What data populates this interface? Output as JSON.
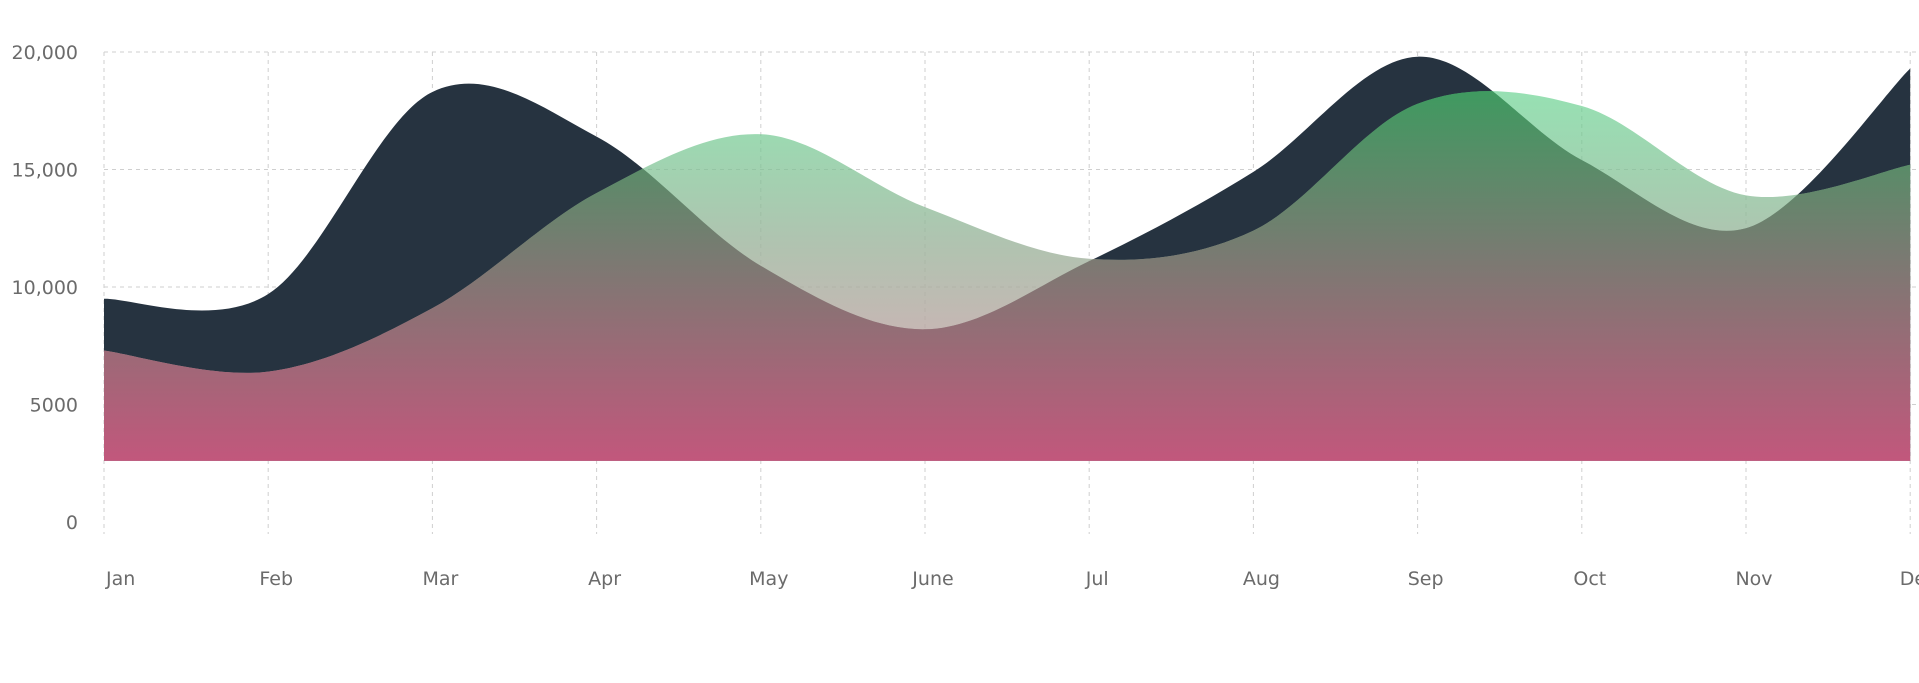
{
  "chart_data": {
    "type": "area",
    "categories": [
      "Jan",
      "Feb",
      "Mar",
      "Apr",
      "May",
      "June",
      "Jul",
      "Aug",
      "Sep",
      "Oct",
      "Nov",
      "Dec"
    ],
    "y_ticks": [
      "0",
      "5000",
      "10,000",
      "15,000",
      "20,000"
    ],
    "ylim": [
      0,
      20000
    ],
    "grid": true,
    "series": [
      {
        "values": [
          9500,
          9700,
          18300,
          16400,
          10900,
          8200,
          11100,
          14900,
          19800,
          15400,
          12500,
          19300
        ],
        "color": "#263340"
      },
      {
        "values": [
          7300,
          6400,
          9100,
          14000,
          16500,
          13400,
          11200,
          12400,
          17800,
          17700,
          13900,
          15200
        ],
        "color_top": "#3f9a60",
        "color_bottom": "#c8567b"
      }
    ],
    "baseline": 2600
  }
}
